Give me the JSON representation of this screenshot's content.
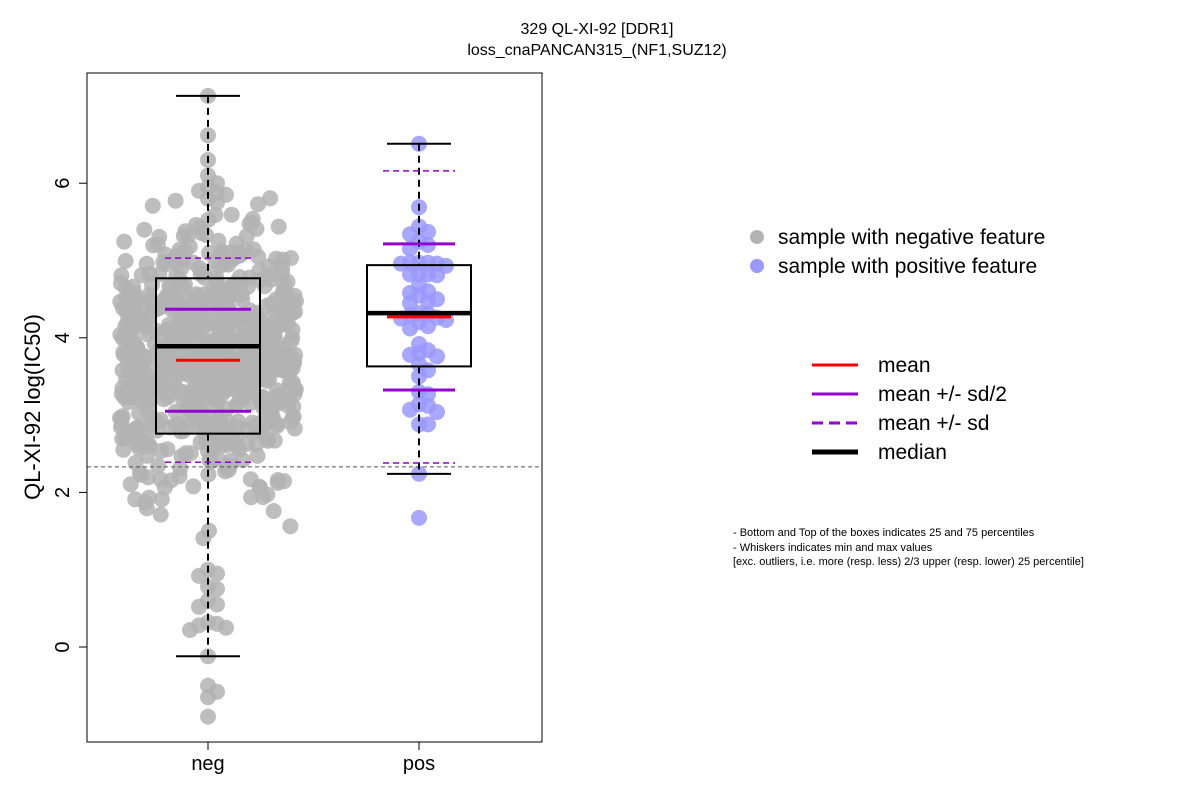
{
  "chart_data": {
    "type": "boxplot-beeswarm",
    "title": "329 QL-XI-92 [DDR1]",
    "subtitle": "loss_cnaPANCAN315_(NF1,SUZ12)",
    "xlabel": "",
    "ylabel": "QL-XI-92 log(IC50)",
    "ylim": [
      -1.2,
      7.3
    ],
    "yticks": [
      0,
      2,
      4,
      6
    ],
    "categories": [
      "neg",
      "pos"
    ],
    "threshold_line": 2.33,
    "groups": [
      {
        "name": "neg",
        "color": "#b3b3b3",
        "n_points": 700,
        "min_whisker": -0.12,
        "q1": 2.76,
        "median": 3.89,
        "q3": 4.77,
        "max_whisker": 7.13,
        "mean": 3.71,
        "sd": 1.32,
        "points": [
          7.13,
          6.62,
          6.3,
          6.1,
          6.0,
          5.95,
          5.9,
          5.88,
          5.85,
          5.8,
          5.75,
          1.0,
          0.95,
          0.92,
          0.78,
          0.75,
          0.6,
          0.55,
          0.52,
          0.32,
          0.3,
          0.28,
          0.25,
          0.22,
          -0.12,
          -0.5,
          -0.58,
          -0.65,
          -0.9
        ]
      },
      {
        "name": "pos",
        "color": "#9999ff",
        "min_whisker": 2.24,
        "q1": 3.63,
        "median": 4.32,
        "q3": 4.94,
        "max_whisker": 6.51,
        "mean": 4.27,
        "sd": 1.89,
        "points": [
          6.51,
          5.69,
          5.44,
          5.37,
          5.34,
          5.24,
          5.2,
          5.15,
          4.97,
          4.97,
          4.97,
          4.96,
          4.96,
          4.93,
          4.82,
          4.82,
          4.82,
          4.81,
          4.68,
          4.6,
          4.58,
          4.55,
          4.5,
          4.47,
          4.45,
          4.32,
          4.31,
          4.29,
          4.26,
          4.25,
          4.23,
          4.2,
          4.15,
          4.12,
          3.92,
          3.84,
          3.8,
          3.78,
          3.76,
          3.66,
          3.58,
          3.5,
          3.3,
          3.27,
          3.14,
          3.12,
          3.07,
          3.04,
          2.88,
          2.88,
          2.24,
          1.67
        ]
      }
    ],
    "legend": {
      "points": [
        {
          "label": "sample with negative feature",
          "color": "#b3b3b3"
        },
        {
          "label": "sample with positive feature",
          "color": "#9999ff"
        }
      ],
      "lines": [
        {
          "label": "mean",
          "color": "#ff0000",
          "style": "solid"
        },
        {
          "label": "mean +/- sd/2",
          "color": "#9400d3",
          "style": "solid"
        },
        {
          "label": "mean +/- sd",
          "color": "#9400d3",
          "style": "dashed"
        },
        {
          "label": "median",
          "color": "#000000",
          "style": "solid-thick"
        }
      ]
    },
    "notes": [
      "- Bottom and Top of the boxes indicates 25 and 75 percentiles",
      "- Whiskers indicates min and max values",
      "[exc. outliers, i.e. more (resp. less) 2/3 upper (resp. lower) 25 percentile]"
    ]
  }
}
